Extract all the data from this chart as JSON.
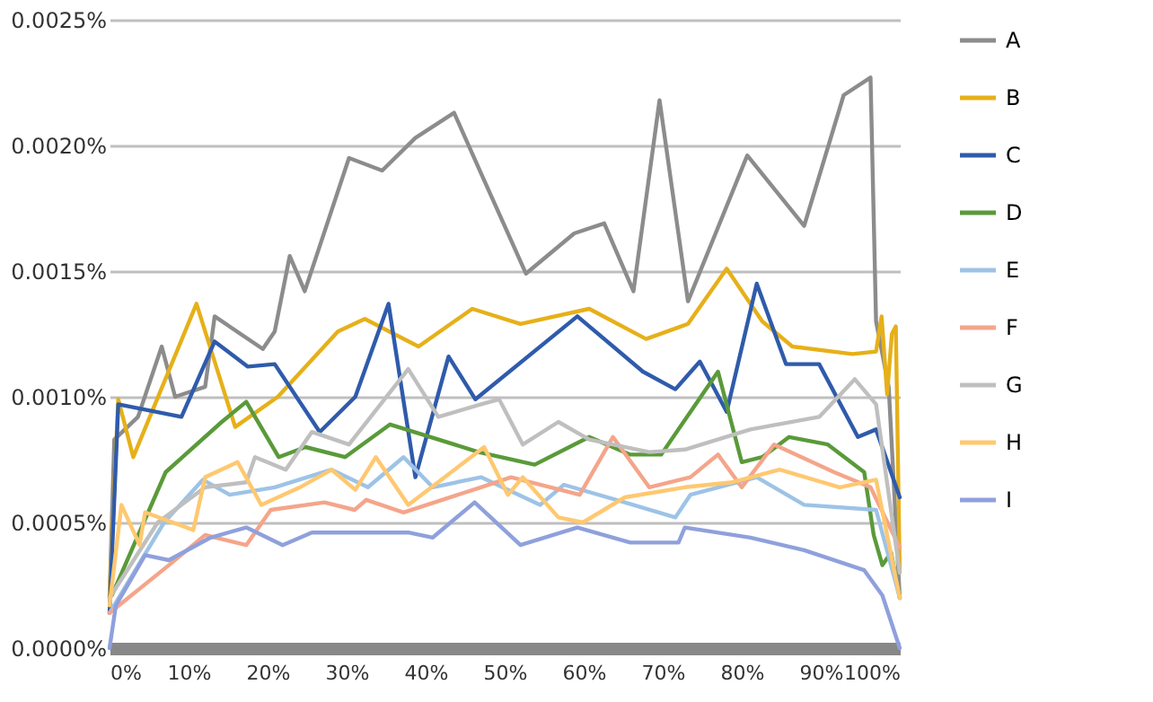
{
  "chart_data": {
    "type": "line",
    "xlim": [
      0,
      100
    ],
    "xticks": [
      {
        "value": 0,
        "label": "0%"
      },
      {
        "value": 10,
        "label": "10%"
      },
      {
        "value": 20,
        "label": "20%"
      },
      {
        "value": 30,
        "label": "30%"
      },
      {
        "value": 40,
        "label": "40%"
      },
      {
        "value": 50,
        "label": "50%"
      },
      {
        "value": 60,
        "label": "60%"
      },
      {
        "value": 70,
        "label": "70%"
      },
      {
        "value": 80,
        "label": "80%"
      },
      {
        "value": 90,
        "label": "90%"
      },
      {
        "value": 100,
        "label": "100%"
      }
    ],
    "ylim": [
      0,
      0.0025
    ],
    "yticks": [
      {
        "value": 0,
        "label": "0.0000%"
      },
      {
        "value": 0.0005,
        "label": "0.0005%"
      },
      {
        "value": 0.001,
        "label": "0.0010%"
      },
      {
        "value": 0.0015,
        "label": "0.0015%"
      },
      {
        "value": 0.002,
        "label": "0.0020%"
      },
      {
        "value": 0.0025,
        "label": "0.0025%"
      }
    ],
    "grid": "y",
    "legend": "right",
    "marker": "none",
    "line_style": "solid",
    "series": [
      {
        "name": "A",
        "color": "#8c8c8c",
        "x": [
          0,
          0.6,
          3.6,
          6.6,
          8.3,
          12.1,
          13.3,
          19.4,
          20.9,
          22.8,
          24.7,
          30.3,
          34.5,
          38.7,
          43.6,
          47,
          52.7,
          58.8,
          62.6,
          66.3,
          69.6,
          73.2,
          80.7,
          87.9,
          92.9,
          96.3,
          97,
          98.6,
          100
        ],
        "values": [
          0.0002,
          0.00083,
          0.00092,
          0.0012,
          0.001,
          0.00104,
          0.00132,
          0.00119,
          0.00126,
          0.00156,
          0.00142,
          0.00195,
          0.0019,
          0.00203,
          0.00213,
          0.00189,
          0.00149,
          0.00165,
          0.00169,
          0.00142,
          0.00218,
          0.00138,
          0.00196,
          0.00168,
          0.0022,
          0.00227,
          0.0013,
          0.00104,
          0.0002
        ]
      },
      {
        "name": "B",
        "color": "#e6b019",
        "x": [
          0,
          1.1,
          3,
          11,
          15.9,
          21.3,
          28.9,
          32.3,
          39.1,
          45.9,
          52,
          60.7,
          67.9,
          73.2,
          78.1,
          82.6,
          86.4,
          94,
          97,
          97.7,
          98.4,
          99,
          99.5,
          100
        ],
        "values": [
          0.0002,
          0.00099,
          0.00076,
          0.00137,
          0.00088,
          0.001,
          0.00126,
          0.00131,
          0.0012,
          0.00135,
          0.00129,
          0.00135,
          0.00123,
          0.00129,
          0.00151,
          0.0013,
          0.0012,
          0.00117,
          0.00118,
          0.00132,
          0.00101,
          0.00125,
          0.00128,
          0.0003
        ]
      },
      {
        "name": "C",
        "color": "#2f5bab",
        "x": [
          0,
          1.1,
          9.1,
          13.3,
          17.5,
          20.9,
          26.6,
          31.1,
          35.3,
          38.7,
          42.9,
          46.3,
          59.2,
          67.5,
          71.6,
          74.7,
          78.1,
          81.9,
          85.6,
          89.8,
          94.7,
          97,
          100
        ],
        "values": [
          0.00014,
          0.00097,
          0.00092,
          0.00122,
          0.00112,
          0.00113,
          0.00086,
          0.001,
          0.00137,
          0.00068,
          0.00116,
          0.00099,
          0.00132,
          0.0011,
          0.00103,
          0.00114,
          0.00094,
          0.00145,
          0.00113,
          0.00113,
          0.00084,
          0.00087,
          0.0006
        ]
      },
      {
        "name": "D",
        "color": "#5a9a3a",
        "x": [
          0.3,
          7.1,
          14.2,
          17.3,
          21.4,
          24.8,
          29.8,
          35.5,
          46.7,
          53.8,
          60.7,
          65.9,
          69.8,
          77,
          80,
          82.6,
          86,
          90.9,
          95.5,
          96.7,
          97.8,
          98.9,
          100
        ],
        "values": [
          0.00021,
          0.0007,
          0.0009,
          0.00098,
          0.00076,
          0.0008,
          0.00076,
          0.00089,
          0.00078,
          0.00073,
          0.00084,
          0.00077,
          0.00077,
          0.0011,
          0.00074,
          0.00076,
          0.00084,
          0.00081,
          0.0007,
          0.00045,
          0.00033,
          0.00038,
          0.0002
        ]
      },
      {
        "name": "E",
        "color": "#9dc3e6",
        "x": [
          0,
          6.9,
          11.8,
          15.2,
          20.9,
          28.1,
          32.7,
          37.2,
          40.9,
          47,
          54.5,
          57.5,
          65.2,
          71.6,
          73.5,
          81.9,
          87.9,
          97,
          100
        ],
        "values": [
          0.00014,
          0.0005,
          0.00067,
          0.00061,
          0.00064,
          0.00071,
          0.00064,
          0.00076,
          0.00064,
          0.00068,
          0.00057,
          0.00065,
          0.00058,
          0.00052,
          0.00061,
          0.00068,
          0.00057,
          0.00055,
          0.0002
        ]
      },
      {
        "name": "F",
        "color": "#f4a58a",
        "x": [
          0,
          7.5,
          12.1,
          17.3,
          20.4,
          27.2,
          31,
          32.5,
          37.2,
          47,
          50.8,
          59.5,
          63.7,
          68.3,
          73.5,
          77,
          80,
          84.1,
          91.7,
          96.3,
          100
        ],
        "values": [
          0.00014,
          0.00033,
          0.00045,
          0.00041,
          0.00055,
          0.00058,
          0.00055,
          0.00059,
          0.00054,
          0.00064,
          0.00068,
          0.00061,
          0.00084,
          0.00064,
          0.00068,
          0.00077,
          0.00064,
          0.00081,
          0.0007,
          0.00064,
          0.0004
        ]
      },
      {
        "name": "G",
        "color": "#bfbfbf",
        "x": [
          0,
          6.1,
          12.1,
          17.3,
          18.4,
          22.3,
          25.6,
          30.3,
          37.8,
          41.6,
          47,
          49.3,
          52.3,
          56.8,
          60.7,
          68.3,
          72.8,
          81.1,
          89.8,
          94.3,
          97,
          100
        ],
        "values": [
          0.0002,
          0.0005,
          0.00064,
          0.00066,
          0.00076,
          0.00071,
          0.00086,
          0.00081,
          0.00111,
          0.00092,
          0.00097,
          0.00099,
          0.00081,
          0.0009,
          0.00083,
          0.00078,
          0.00079,
          0.00087,
          0.00092,
          0.00107,
          0.00097,
          0.0003
        ]
      },
      {
        "name": "H",
        "color": "#ffc870",
        "x": [
          0,
          1.5,
          3.8,
          4.5,
          10.6,
          12.1,
          16.2,
          19.2,
          24.1,
          28.1,
          31.1,
          33.7,
          37.8,
          47.4,
          50.4,
          52.3,
          56.8,
          59.9,
          65.2,
          72.8,
          78.8,
          84.8,
          92.4,
          97,
          100
        ],
        "values": [
          0.00017,
          0.00057,
          0.00041,
          0.00054,
          0.00047,
          0.00068,
          0.00074,
          0.00057,
          0.00064,
          0.00071,
          0.00063,
          0.00076,
          0.00057,
          0.0008,
          0.00061,
          0.00068,
          0.00052,
          0.0005,
          0.0006,
          0.00064,
          0.00066,
          0.00071,
          0.00064,
          0.00067,
          0.0002
        ]
      },
      {
        "name": "I",
        "color": "#8fa0dc",
        "x": [
          0,
          0.8,
          4.5,
          7.5,
          12.8,
          17.3,
          21.9,
          25.6,
          37.8,
          40.9,
          46.2,
          52,
          59.2,
          65.9,
          72,
          72.8,
          81.1,
          87.9,
          95.5,
          97.8,
          100
        ],
        "values": [
          0,
          0.00017,
          0.00037,
          0.00035,
          0.00044,
          0.00048,
          0.00041,
          0.00046,
          0.00046,
          0.00044,
          0.00058,
          0.00041,
          0.00048,
          0.00042,
          0.00042,
          0.00048,
          0.00044,
          0.00039,
          0.00031,
          0.00021,
          0
        ]
      }
    ]
  }
}
